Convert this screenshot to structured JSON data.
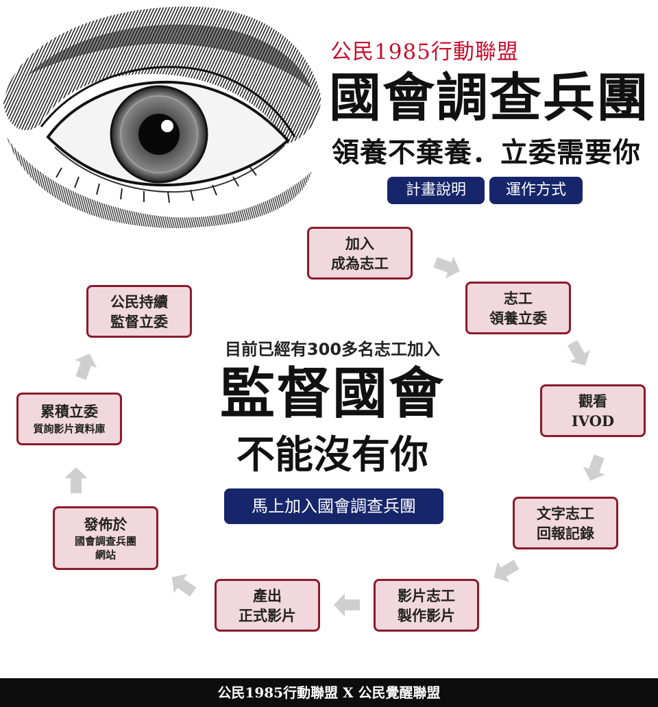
{
  "header": {
    "org": "公民1985行動聯盟",
    "title": "國會調查兵團",
    "tagline": "領養不棄養．立委需要你",
    "buttons": {
      "plan": "計畫說明",
      "how": "運作方式"
    }
  },
  "cycle": {
    "steps": [
      {
        "line1": "加入",
        "line2": "成為志工"
      },
      {
        "line1": "志工",
        "line2": "領養立委"
      },
      {
        "line1": "觀看",
        "line2": "IVOD"
      },
      {
        "line1": "文字志工",
        "line2": "回報記錄"
      },
      {
        "line1": "影片志工",
        "line2": "製作影片"
      },
      {
        "line1": "產出",
        "line2": "正式影片"
      },
      {
        "line1": "發佈於",
        "line2": "國會調查兵團",
        "line3": "網站"
      },
      {
        "line1": "累積立委",
        "line2": "質詢影片資料庫"
      },
      {
        "line1": "公民持續",
        "line2": "監督立委"
      }
    ]
  },
  "center": {
    "lead": "目前已經有300多名志工加入",
    "headline": "監督國會",
    "subhead": "不能沒有你",
    "cta": "馬上加入國會調查兵團"
  },
  "footer": {
    "text": "公民1985行動聯盟 X 公民覺醒聯盟"
  },
  "colors": {
    "accent_red": "#c8102e",
    "navy": "#17266a",
    "step_fill": "#f1d8dc",
    "step_border": "#8b1a2a",
    "arrow_gray": "#cfcfcf"
  }
}
